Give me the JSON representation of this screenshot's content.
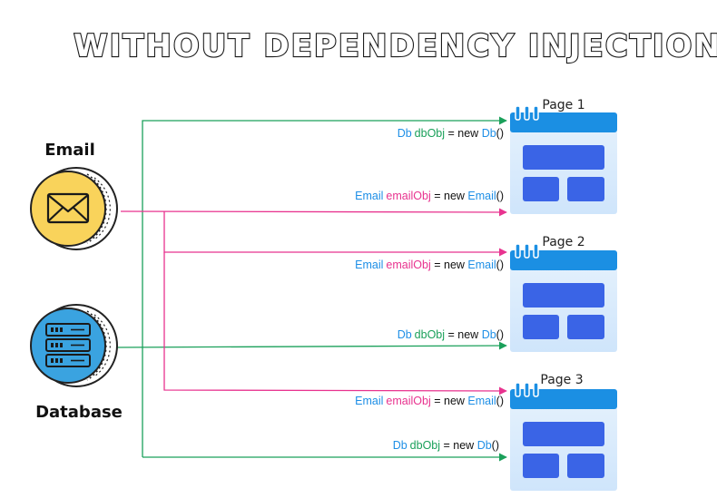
{
  "title": "WITHOUT DEPENDENCY INJECTION",
  "nodes": {
    "email": {
      "label": "Email"
    },
    "database": {
      "label": "Database"
    }
  },
  "pages": [
    {
      "label": "Page 1"
    },
    {
      "label": "Page 2"
    },
    {
      "label": "Page 3"
    }
  ],
  "statements": {
    "db": {
      "type": "Db",
      "var": "dbObj",
      "op": " = new ",
      "ctor": "Db",
      "paren": "()"
    },
    "email": {
      "type": "Email",
      "var": "emailObj",
      "op": " = new ",
      "ctor": "Email",
      "paren": "()"
    }
  },
  "colors": {
    "db_arrow": "#1aa05a",
    "email_arrow": "#e8338f",
    "email_coin": "#f9d35b",
    "db_coin": "#3aa3e0",
    "page_header": "#1b8fe3",
    "page_block": "#3a64e6"
  }
}
